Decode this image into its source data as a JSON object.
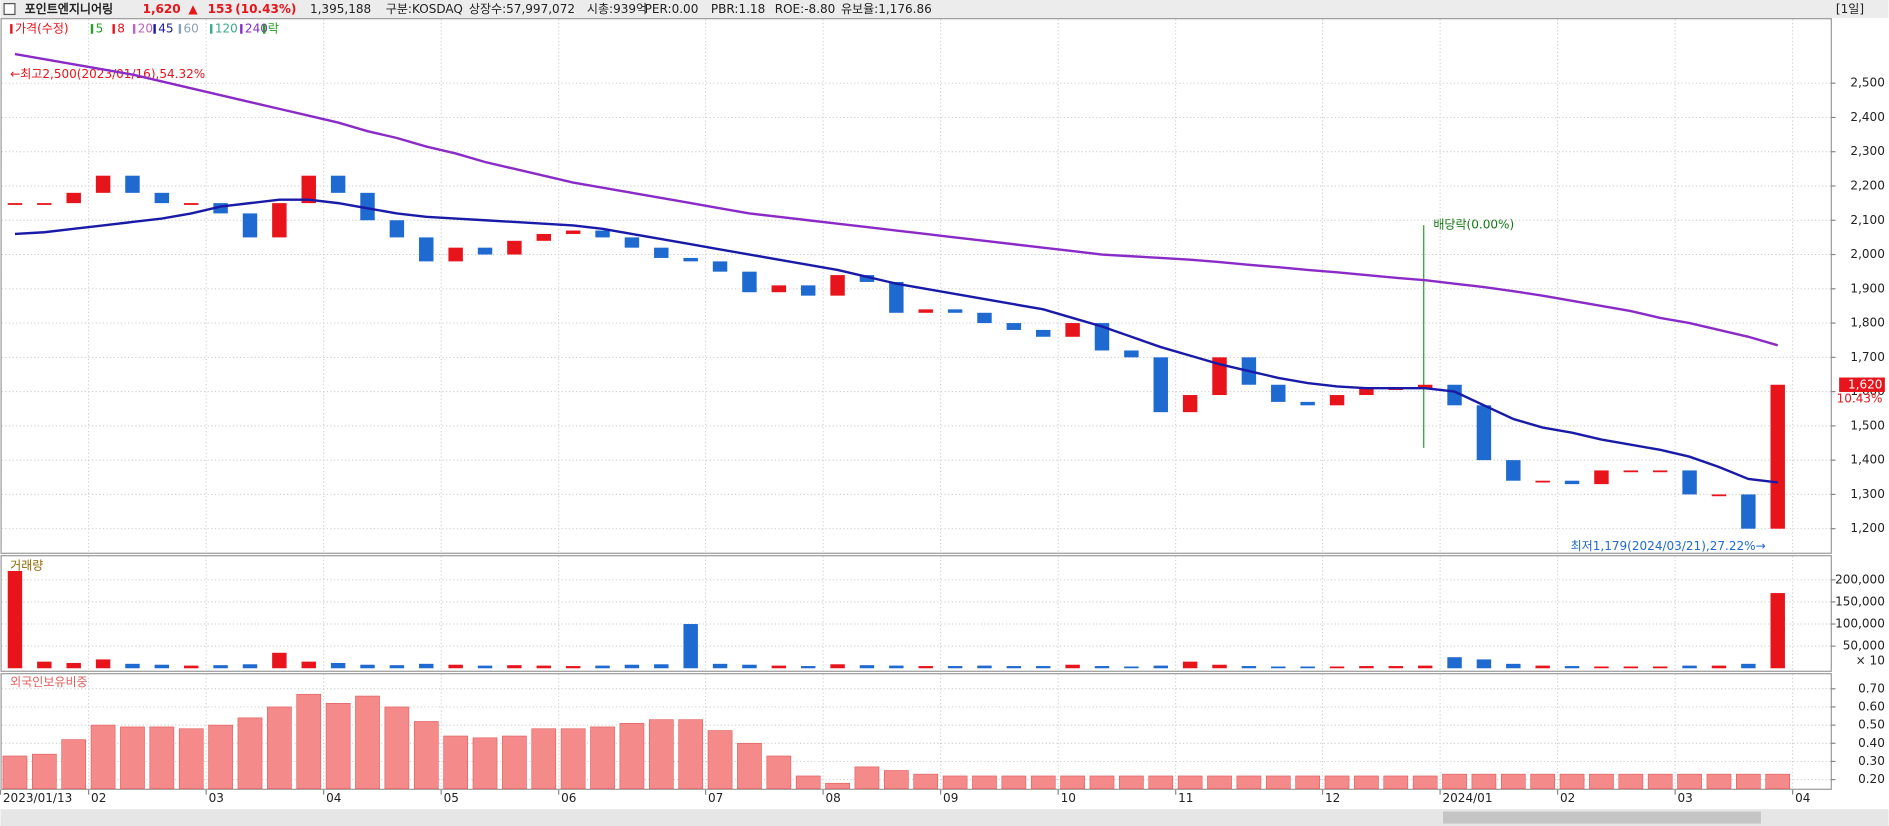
{
  "header": {
    "name": "포인트엔지니어링",
    "price": "1,620",
    "arrow": "▲",
    "change": "153",
    "change_pct": "(10.43%)",
    "volume": "1,395,188",
    "market": "구분:KOSDAQ",
    "listed": "상장수:57,997,072",
    "cap": "시총:939억",
    "per": "PER:0.00",
    "pbr": "PBR:1.18",
    "roe": "ROE:-8.80",
    "reserve": "유보율:1,176.86",
    "period": "[1일]"
  },
  "chart_data": {
    "type": "candlestick",
    "legend": [
      {
        "name": "가격(수정)",
        "color": "#e8141b"
      },
      {
        "name": "5",
        "color": "#22a022"
      },
      {
        "name": "8",
        "color": "#e8141b"
      },
      {
        "name": "20",
        "color": "#c060c0"
      },
      {
        "name": "45",
        "color": "#1a1aa8"
      },
      {
        "name": "60",
        "color": "#8aa0b8"
      },
      {
        "name": "120",
        "color": "#3aaa8a"
      },
      {
        "name": "240",
        "color": "#8a2bc8"
      },
      {
        "name": "락",
        "color": "#22a022"
      }
    ],
    "categories": [
      "2023/01/13",
      null,
      null,
      "02",
      null,
      null,
      null,
      "03",
      null,
      null,
      null,
      "04",
      null,
      null,
      null,
      "05",
      null,
      null,
      null,
      "06",
      null,
      null,
      null,
      null,
      "07",
      null,
      null,
      null,
      "08",
      null,
      null,
      null,
      "09",
      null,
      null,
      null,
      "10",
      null,
      null,
      null,
      "11",
      null,
      null,
      null,
      null,
      "12",
      null,
      null,
      null,
      "2024/01",
      null,
      null,
      null,
      "02",
      null,
      null,
      null,
      "03",
      null,
      null,
      null,
      "04"
    ],
    "price": {
      "up_color": "#e8141b",
      "down_color": "#1f6ad0",
      "values": [
        2150,
        2150,
        2180,
        2230,
        2180,
        2150,
        2150,
        2120,
        2050,
        2150,
        2230,
        2180,
        2100,
        2050,
        1980,
        2020,
        2000,
        2040,
        2060,
        2070,
        2050,
        2020,
        1990,
        1980,
        1950,
        1890,
        1910,
        1880,
        1940,
        1920,
        1830,
        1840,
        1830,
        1800,
        1780,
        1760,
        1800,
        1720,
        1700,
        1540,
        1590,
        1700,
        1620,
        1570,
        1560,
        1590,
        1610,
        1610,
        1620,
        1560,
        1400,
        1340,
        1340,
        1330,
        1370,
        1370,
        1370,
        1300,
        1300,
        1200,
        1620,
        null
      ]
    },
    "ma_series": [
      {
        "name": "240",
        "color": "#8a2bc8",
        "values": [
          2585,
          2570,
          2555,
          2540,
          2525,
          2505,
          2485,
          2465,
          2445,
          2425,
          2405,
          2385,
          2360,
          2340,
          2315,
          2295,
          2270,
          2250,
          2230,
          2210,
          2195,
          2180,
          2165,
          2150,
          2135,
          2120,
          2110,
          2100,
          2090,
          2080,
          2070,
          2060,
          2050,
          2040,
          2030,
          2020,
          2010,
          2000,
          1995,
          1990,
          1985,
          1978,
          1970,
          1963,
          1955,
          1948,
          1940,
          1932,
          1925,
          1915,
          1905,
          1893,
          1880,
          1865,
          1850,
          1835,
          1815,
          1800,
          1780,
          1760,
          1735,
          null
        ]
      },
      {
        "name": "45",
        "color": "#1a1aa8",
        "values": [
          2060,
          2065,
          2075,
          2085,
          2095,
          2105,
          2120,
          2140,
          2150,
          2160,
          2160,
          2150,
          2135,
          2120,
          2110,
          2105,
          2100,
          2095,
          2090,
          2085,
          2075,
          2060,
          2045,
          2030,
          2015,
          2000,
          1985,
          1970,
          1955,
          1935,
          1915,
          1900,
          1885,
          1870,
          1855,
          1840,
          1815,
          1790,
          1760,
          1730,
          1705,
          1680,
          1660,
          1640,
          1625,
          1615,
          1610,
          1610,
          1610,
          1600,
          1560,
          1520,
          1495,
          1480,
          1460,
          1445,
          1430,
          1410,
          1380,
          1345,
          1335,
          null
        ]
      }
    ],
    "ylim": [
      1130,
      2690
    ],
    "yticks": [
      {
        "value": 1200,
        "label": "1,200"
      },
      {
        "value": 1300,
        "label": "1,300"
      },
      {
        "value": 1400,
        "label": "1,400"
      },
      {
        "value": 1500,
        "label": "1,500"
      },
      {
        "value": 1600,
        "label": "1,600"
      },
      {
        "value": 1700,
        "label": "1,700"
      },
      {
        "value": 1800,
        "label": "1,800"
      },
      {
        "value": 1900,
        "label": "1,900"
      },
      {
        "value": 2000,
        "label": "2,000"
      },
      {
        "value": 2100,
        "label": "2,100"
      },
      {
        "value": 2200,
        "label": "2,200"
      },
      {
        "value": 2300,
        "label": "2,300"
      },
      {
        "value": 2400,
        "label": "2,400"
      },
      {
        "value": 2500,
        "label": "2,500"
      }
    ],
    "grid": true,
    "annotations": {
      "high": "←최고2,500(2023/01/16),54.32%",
      "dividend": "배당락(0.00%)",
      "low": "최저1,179(2024/03/21),27.22%→",
      "last_price": {
        "value": 1620,
        "label": "1,620"
      },
      "last_change": "10.43%"
    },
    "volume": {
      "title": "거래량",
      "unit_label": "× 10",
      "ylim": [
        0,
        245000
      ],
      "yticks": [
        {
          "value": 50000,
          "label": "50,000"
        },
        {
          "value": 100000,
          "label": "100,000"
        },
        {
          "value": 150000,
          "label": "150,000"
        },
        {
          "value": 200000,
          "label": "200,000"
        }
      ],
      "values": [
        220000,
        15000,
        12000,
        20000,
        10000,
        8000,
        6000,
        7000,
        9000,
        35000,
        15000,
        12000,
        8000,
        7000,
        10000,
        8000,
        6000,
        7000,
        6000,
        5000,
        6000,
        8000,
        9000,
        100000,
        10000,
        8000,
        6000,
        5000,
        9000,
        7000,
        6000,
        5000,
        5000,
        6000,
        5000,
        5000,
        8000,
        5000,
        4000,
        6000,
        15000,
        8000,
        5000,
        4000,
        4000,
        4000,
        5000,
        5000,
        6000,
        25000,
        20000,
        10000,
        6000,
        5000,
        4000,
        4000,
        4000,
        6000,
        6000,
        10000,
        170000,
        null
      ]
    },
    "foreign": {
      "title": "외국인보유비중",
      "color": "#f48a8a",
      "ylim": [
        0.15,
        0.76
      ],
      "yticks": [
        {
          "value": 0.2,
          "label": "0.20"
        },
        {
          "value": 0.3,
          "label": "0.30"
        },
        {
          "value": 0.4,
          "label": "0.40"
        },
        {
          "value": 0.5,
          "label": "0.50"
        },
        {
          "value": 0.6,
          "label": "0.60"
        },
        {
          "value": 0.7,
          "label": "0.70"
        }
      ],
      "values": [
        0.33,
        0.34,
        0.42,
        0.5,
        0.49,
        0.49,
        0.48,
        0.5,
        0.54,
        0.6,
        0.67,
        0.62,
        0.66,
        0.6,
        0.52,
        0.44,
        0.43,
        0.44,
        0.48,
        0.48,
        0.49,
        0.51,
        0.53,
        0.53,
        0.47,
        0.4,
        0.33,
        0.22,
        0.18,
        0.27,
        0.25,
        0.23,
        0.22,
        0.22,
        0.22,
        0.22,
        0.22,
        0.22,
        0.22,
        0.22,
        0.22,
        0.22,
        0.22,
        0.22,
        0.22,
        0.22,
        0.22,
        0.22,
        0.22,
        0.23,
        0.23,
        0.23,
        0.23,
        0.23,
        0.23,
        0.23,
        0.23,
        0.23,
        0.23,
        0.23,
        0.23,
        null
      ]
    }
  }
}
